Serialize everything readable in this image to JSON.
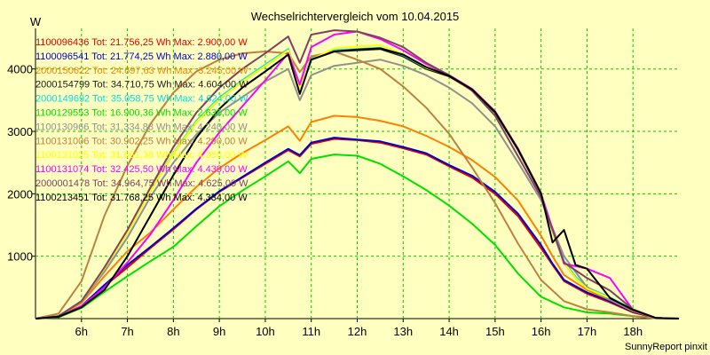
{
  "chart_data": {
    "type": "line",
    "title": "Wechselrichtervergleich vom 10.04.2015",
    "ylabel": "W",
    "xlabel": "",
    "footer": "SunnyReport pinxit",
    "x_ticks": [
      "6h",
      "7h",
      "8h",
      "9h",
      "10h",
      "11h",
      "12h",
      "13h",
      "14h",
      "15h",
      "16h",
      "17h",
      "18h"
    ],
    "y_ticks": [
      1000,
      2000,
      3000,
      4000
    ],
    "xlim": [
      5.0,
      19.0
    ],
    "ylim": [
      0,
      4650
    ],
    "grid": true,
    "grid_color": "#00cc00",
    "background": "#ffffc0",
    "plot_background": "#ffffc0",
    "legend_placement": "top-left",
    "series": [
      {
        "name": "1100096436",
        "legend": "1100096436 Tot: 21.756,25 Wh Max: 2.900,00 W",
        "color": "#e00000",
        "x": [
          5.0,
          5.5,
          6.0,
          6.5,
          7.0,
          7.5,
          8.0,
          8.5,
          9.0,
          9.5,
          10.0,
          10.5,
          10.75,
          11.0,
          11.5,
          12.0,
          12.5,
          13.0,
          13.5,
          14.0,
          14.5,
          15.0,
          15.5,
          16.0,
          16.25,
          16.5,
          17.0,
          17.5,
          18.0,
          18.5,
          19.0
        ],
        "y": [
          0,
          30,
          200,
          520,
          820,
          1130,
          1430,
          1750,
          2030,
          2260,
          2480,
          2700,
          2600,
          2800,
          2880,
          2860,
          2820,
          2730,
          2630,
          2440,
          2260,
          2000,
          1640,
          1130,
          860,
          600,
          400,
          260,
          100,
          10,
          0
        ]
      },
      {
        "name": "1100096541",
        "legend": "1100096541 Tot: 21.774,25 Wh Max: 2.880,00 W",
        "color": "#0000cc",
        "x": [
          5.0,
          5.5,
          6.0,
          6.5,
          7.0,
          7.5,
          8.0,
          8.5,
          9.0,
          9.5,
          10.0,
          10.5,
          10.75,
          11.0,
          11.5,
          12.0,
          12.5,
          13.0,
          13.5,
          14.0,
          14.5,
          15.0,
          15.5,
          16.0,
          16.25,
          16.5,
          17.0,
          17.5,
          18.0,
          18.5,
          19.0
        ],
        "y": [
          0,
          30,
          200,
          540,
          860,
          1150,
          1450,
          1760,
          2040,
          2270,
          2500,
          2720,
          2620,
          2820,
          2900,
          2870,
          2840,
          2750,
          2650,
          2460,
          2290,
          2030,
          1680,
          1180,
          880,
          620,
          420,
          280,
          110,
          10,
          0
        ]
      },
      {
        "name": "2000150622",
        "legend": "2000150622 Tot: 24.697,63 Wh Max: 3.245,00 W",
        "color": "#ff8000",
        "x": [
          5.0,
          5.5,
          6.0,
          6.5,
          7.0,
          7.5,
          8.0,
          8.5,
          9.0,
          9.5,
          10.0,
          10.5,
          10.75,
          11.0,
          11.5,
          12.0,
          12.5,
          13.0,
          13.5,
          14.0,
          14.5,
          15.0,
          15.5,
          16.0,
          16.25,
          16.5,
          17.0,
          17.5,
          18.0,
          18.5,
          19.0
        ],
        "y": [
          0,
          40,
          250,
          680,
          1080,
          1380,
          1750,
          2110,
          2410,
          2650,
          2860,
          3080,
          2850,
          3150,
          3250,
          3230,
          3170,
          3080,
          2930,
          2750,
          2540,
          2270,
          1890,
          1330,
          1000,
          700,
          460,
          300,
          120,
          10,
          0
        ]
      },
      {
        "name": "2000154799",
        "legend": "2000154799 Tot: 34.710,75 Wh Max: 4.604,00 W",
        "color": "#202020",
        "x": [
          5.0,
          5.5,
          6.0,
          6.5,
          7.0,
          7.5,
          8.0,
          8.5,
          9.0,
          9.5,
          10.0,
          10.5,
          10.75,
          11.0,
          11.5,
          12.0,
          12.5,
          13.0,
          13.5,
          14.0,
          14.5,
          15.0,
          15.5,
          16.0,
          16.25,
          16.5,
          16.75,
          17.0,
          17.5,
          18.0,
          18.5,
          19.0
        ],
        "y": [
          0,
          40,
          280,
          800,
          1380,
          2050,
          2650,
          3150,
          3520,
          3800,
          4050,
          4300,
          3700,
          4150,
          4280,
          4300,
          4320,
          4200,
          4000,
          3880,
          3660,
          3300,
          2700,
          2000,
          1400,
          900,
          650,
          480,
          330,
          140,
          10,
          0
        ]
      },
      {
        "name": "2000149692",
        "legend": "2000149692 Tot: 35.058,75 Wh Max: 4.624,00 W",
        "color": "#00e0e0",
        "x": [
          5.0,
          5.5,
          6.0,
          6.5,
          7.0,
          7.5,
          8.0,
          8.5,
          9.0,
          9.5,
          10.0,
          10.5,
          10.75,
          11.0,
          11.5,
          12.0,
          12.5,
          13.0,
          13.5,
          14.0,
          14.5,
          15.0,
          15.5,
          16.0,
          16.25,
          16.5,
          16.75,
          17.0,
          17.5,
          18.0,
          18.5,
          19.0
        ],
        "y": [
          0,
          40,
          280,
          800,
          1380,
          2060,
          2660,
          3170,
          3540,
          3820,
          4070,
          4320,
          3720,
          4170,
          4300,
          4320,
          4340,
          4220,
          4020,
          3900,
          3680,
          3320,
          2720,
          2020,
          1420,
          920,
          670,
          500,
          340,
          150,
          10,
          0
        ]
      },
      {
        "name": "1100129553",
        "legend": "1100129553 Tot: 16.900,36 Wh Max: 2.635,00 W",
        "color": "#00e000",
        "x": [
          5.0,
          5.5,
          6.0,
          6.5,
          7.0,
          7.5,
          8.0,
          8.5,
          9.0,
          9.5,
          10.0,
          10.5,
          10.75,
          11.0,
          11.5,
          12.0,
          12.5,
          13.0,
          13.5,
          14.0,
          14.5,
          15.0,
          15.5,
          16.0,
          16.5,
          17.0,
          17.5,
          18.0,
          18.5,
          19.0
        ],
        "y": [
          0,
          20,
          170,
          430,
          680,
          920,
          1150,
          1480,
          1800,
          2050,
          2280,
          2520,
          2330,
          2560,
          2630,
          2610,
          2480,
          2280,
          2060,
          1810,
          1520,
          1180,
          720,
          350,
          180,
          100,
          80,
          40,
          5,
          0
        ]
      },
      {
        "name": "1100130966",
        "legend": "1100130966 Tot: 31.334,88 Wh Max: 4.240,00 W",
        "color": "#909090",
        "x": [
          5.0,
          5.5,
          6.0,
          6.5,
          7.0,
          7.5,
          8.0,
          8.5,
          9.0,
          9.5,
          10.0,
          10.5,
          10.75,
          11.0,
          11.5,
          12.0,
          12.5,
          13.0,
          13.5,
          14.0,
          14.5,
          15.0,
          15.5,
          16.0,
          16.5,
          17.0,
          17.5,
          18.0,
          18.5,
          19.0
        ],
        "y": [
          0,
          40,
          270,
          750,
          1300,
          1950,
          2500,
          2950,
          3300,
          3550,
          3800,
          4000,
          3500,
          3900,
          4050,
          4100,
          4150,
          4050,
          3900,
          3700,
          3450,
          3080,
          2500,
          1900,
          1000,
          500,
          300,
          130,
          10,
          0
        ]
      },
      {
        "name": "1100131006",
        "legend": "1100131006 Tot: 30.902,25 Wh Max: 4.290,00 W",
        "color": "#c08040",
        "x": [
          5.0,
          5.5,
          6.0,
          6.5,
          7.0,
          7.5,
          8.0,
          8.5,
          9.0,
          9.5,
          10.0,
          10.5,
          10.75,
          11.0,
          11.5,
          12.0,
          12.5,
          13.0,
          13.5,
          14.0,
          14.5,
          15.0,
          15.5,
          16.0,
          16.5,
          17.0,
          17.5,
          18.0,
          18.5,
          19.0
        ],
        "y": [
          0,
          80,
          600,
          1650,
          2450,
          3120,
          3620,
          3960,
          4150,
          4250,
          4280,
          4250,
          3950,
          4200,
          4280,
          4150,
          4000,
          3720,
          3380,
          2960,
          2420,
          1850,
          1200,
          620,
          280,
          150,
          100,
          40,
          5,
          0
        ]
      },
      {
        "name": "1100131025",
        "legend": "1100131025 Tot: 31.661,38 Wh Max: 4.350,00 W",
        "color": "#ffff00",
        "x": [
          5.0,
          5.5,
          6.0,
          6.5,
          7.0,
          7.5,
          8.0,
          8.5,
          9.0,
          9.5,
          10.0,
          10.5,
          10.75,
          11.0,
          11.5,
          12.0,
          12.5,
          13.0,
          13.5,
          14.0,
          14.5,
          15.0,
          15.5,
          16.0,
          16.25,
          16.5,
          16.75,
          17.0,
          17.5,
          18.0,
          18.5,
          19.0
        ],
        "y": [
          0,
          40,
          280,
          800,
          1380,
          2050,
          2650,
          3150,
          3520,
          3800,
          4050,
          4300,
          3700,
          4150,
          4330,
          4360,
          4380,
          4240,
          4020,
          3900,
          3680,
          3320,
          2720,
          2020,
          1400,
          900,
          650,
          480,
          330,
          140,
          10,
          0
        ]
      },
      {
        "name": "1100131074",
        "legend": "1100131074 Tot: 32.425,50 Wh Max: 4.439,00 W",
        "color": "#ff00ff",
        "x": [
          5.0,
          5.5,
          6.0,
          6.5,
          7.0,
          7.5,
          8.0,
          8.5,
          9.0,
          9.5,
          10.0,
          10.5,
          10.75,
          11.0,
          11.5,
          12.0,
          12.5,
          13.0,
          13.5,
          14.0,
          14.5,
          15.0,
          15.5,
          16.0,
          16.5,
          17.0,
          17.5,
          18.0,
          18.5,
          19.0
        ],
        "y": [
          0,
          30,
          200,
          500,
          900,
          1350,
          1900,
          2500,
          2980,
          3400,
          3820,
          4250,
          3750,
          4350,
          4550,
          4600,
          4480,
          4300,
          4080,
          3900,
          3680,
          3320,
          2720,
          2000,
          880,
          800,
          650,
          140,
          10,
          0
        ]
      },
      {
        "name": "2000001478",
        "legend": "2000001478 Tot: 34.964,75 Wh Max: 4.625,00 W",
        "color": "#804060",
        "x": [
          5.0,
          5.5,
          6.0,
          6.5,
          7.0,
          7.5,
          8.0,
          8.5,
          9.0,
          9.5,
          10.0,
          10.5,
          10.75,
          11.0,
          11.5,
          12.0,
          12.5,
          13.0,
          13.5,
          14.0,
          14.5,
          15.0,
          15.5,
          16.0,
          16.5,
          17.0,
          17.5,
          18.0,
          18.5,
          19.0
        ],
        "y": [
          0,
          40,
          280,
          820,
          1420,
          2100,
          2750,
          3300,
          3700,
          4000,
          4250,
          4520,
          4100,
          4550,
          4620,
          4600,
          4500,
          4350,
          4100,
          3900,
          3650,
          3250,
          2600,
          1950,
          900,
          650,
          450,
          150,
          10,
          0
        ]
      },
      {
        "name": "1100213451",
        "legend": "1100213451 Tot: 31.768,25 Wh Max: 4.334,00 W",
        "color": "#000000",
        "x": [
          5.0,
          5.5,
          6.0,
          6.5,
          7.0,
          7.5,
          8.0,
          8.5,
          9.0,
          9.5,
          10.0,
          10.5,
          10.75,
          11.0,
          11.5,
          12.0,
          12.5,
          13.0,
          13.5,
          14.0,
          14.5,
          15.0,
          15.5,
          16.0,
          16.25,
          16.5,
          16.75,
          17.0,
          17.5,
          18.0,
          18.5,
          19.0
        ],
        "y": [
          0,
          30,
          180,
          460,
          1000,
          1650,
          2300,
          2900,
          3360,
          3700,
          3960,
          4230,
          3600,
          4150,
          4280,
          4310,
          4330,
          4230,
          4030,
          3890,
          3670,
          3310,
          2710,
          2010,
          1220,
          1420,
          860,
          800,
          330,
          140,
          10,
          0
        ]
      }
    ]
  }
}
